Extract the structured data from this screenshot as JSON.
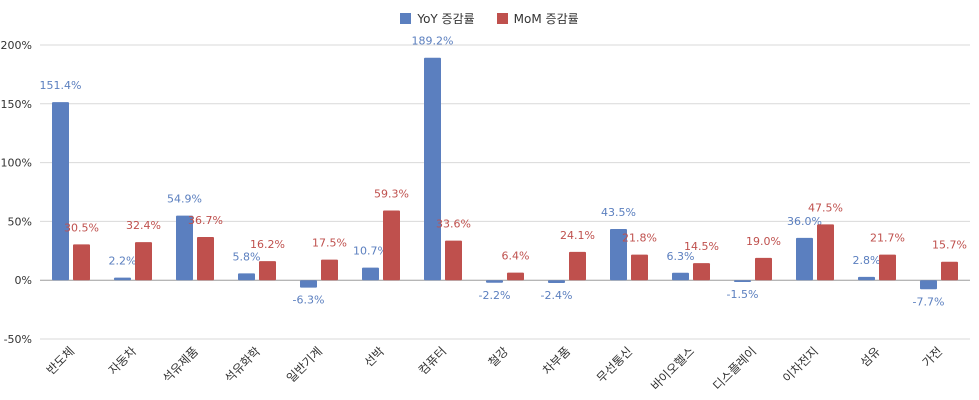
{
  "chart_data": {
    "type": "bar",
    "categories": [
      "반도체",
      "자동차",
      "석유제품",
      "석유화학",
      "일반기계",
      "선박",
      "컴퓨터",
      "철강",
      "차부품",
      "무선통신",
      "바이오헬스",
      "디스플레이",
      "이차전지",
      "섬유",
      "가전"
    ],
    "series": [
      {
        "name": "YoY 증감률",
        "color": "#5b7fbf",
        "values": [
          151.4,
          2.2,
          54.9,
          5.8,
          -6.3,
          10.7,
          189.2,
          -2.2,
          -2.4,
          43.5,
          6.3,
          -1.5,
          36.0,
          2.8,
          -7.7
        ]
      },
      {
        "name": "MoM 증감률",
        "color": "#bf504d",
        "values": [
          30.5,
          32.4,
          36.7,
          16.2,
          17.5,
          59.3,
          33.6,
          6.4,
          24.1,
          21.8,
          14.5,
          19.0,
          47.5,
          21.7,
          15.7
        ]
      }
    ],
    "data_labels": {
      "YoY 증감률": [
        "151.4%",
        "2.2%",
        "54.9%",
        "5.8%",
        "-6.3%",
        "10.7%",
        "189.2%",
        "-2.2%",
        "-2.4%",
        "43.5%",
        "6.3%",
        "-1.5%",
        "36.0%",
        "2.8%",
        "-7.7%"
      ],
      "MoM 증감률": [
        "30.5%",
        "32.4%",
        "36.7%",
        "16.2%",
        "17.5%",
        "59.3%",
        "33.6%",
        "6.4%",
        "24.1%",
        "21.8%",
        "14.5%",
        "19.0%",
        "47.5%",
        "21.7%",
        "15.7%"
      ]
    },
    "ylim": [
      -50,
      200
    ],
    "yticks": [
      -50,
      0,
      50,
      100,
      150,
      200
    ],
    "ytick_labels": [
      "-50%",
      "0%",
      "50%",
      "100%",
      "150%",
      "200%"
    ],
    "title": "",
    "xlabel": "",
    "ylabel": "",
    "grid": true,
    "legend": "top-center"
  }
}
